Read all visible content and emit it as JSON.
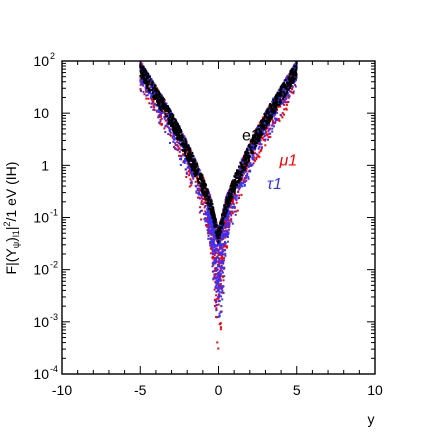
{
  "chart_data": {
    "type": "scatter",
    "xlabel": "y",
    "ylabel": "F|(Y_ψ)_l1|²/1 eV (IH)",
    "ylabel_parts": {
      "a": "F|(Y",
      "b": "ψ",
      "c": ")",
      "d": "l1",
      "e": "|",
      "f": "2",
      "g": "/1 eV (IH)"
    },
    "xlim": [
      -10,
      10
    ],
    "ylim": [
      0.0001,
      100
    ],
    "yscale": "log",
    "grid": false,
    "x_ticks": [
      -10,
      -5,
      0,
      5,
      10
    ],
    "x_tick_labels": [
      "-10",
      "-5",
      "0",
      "5",
      "10"
    ],
    "y_ticks": [
      {
        "value": 0.0001,
        "base": "10",
        "exp": "-4"
      },
      {
        "value": 0.001,
        "base": "10",
        "exp": "-3"
      },
      {
        "value": 0.01,
        "base": "10",
        "exp": "-2"
      },
      {
        "value": 0.1,
        "base": "10",
        "exp": "-1"
      },
      {
        "value": 1,
        "base": "1",
        "exp": ""
      },
      {
        "value": 10,
        "base": "10",
        "exp": ""
      },
      {
        "value": 100,
        "base": "10",
        "exp": "2"
      }
    ],
    "series": [
      {
        "name": "e1",
        "color": "#000000",
        "label_pos": {
          "x": 1.5,
          "y": 3
        },
        "x": [
          -5.0,
          -4.5,
          -4.0,
          -3.5,
          -3.0,
          -2.5,
          -2.0,
          -1.5,
          -1.0,
          -0.5,
          0.0,
          0.5,
          1.0,
          1.5,
          2.0,
          2.5,
          3.0,
          3.5,
          4.0,
          4.5,
          5.0
        ],
        "y_low": [
          50,
          28,
          16,
          9,
          5.0,
          2.6,
          1.3,
          0.62,
          0.28,
          0.12,
          0.032,
          0.12,
          0.28,
          0.62,
          1.3,
          2.6,
          5.0,
          9,
          16,
          28,
          50
        ],
        "y_high": [
          100,
          58,
          33,
          19,
          10.5,
          5.6,
          2.8,
          1.35,
          0.62,
          0.25,
          0.06,
          0.25,
          0.62,
          1.35,
          2.8,
          5.6,
          10.5,
          19,
          33,
          58,
          100
        ]
      },
      {
        "name": "μ1",
        "color": "#ff0000",
        "label_pos": {
          "x": 3.9,
          "y": 1.0
        },
        "x": [
          -5.0,
          -4.5,
          -4.0,
          -3.5,
          -3.0,
          -2.5,
          -2.0,
          -1.5,
          -1.0,
          -0.5,
          0.0,
          0.5,
          1.0,
          1.5,
          2.0,
          2.5,
          3.0,
          3.5,
          4.0,
          4.5,
          5.0
        ],
        "y_low": [
          22,
          12,
          6.5,
          3.6,
          1.9,
          1.0,
          0.45,
          0.19,
          0.07,
          0.018,
          0.00012,
          0.018,
          0.07,
          0.19,
          0.45,
          1.0,
          1.9,
          3.6,
          6.5,
          12,
          22
        ],
        "y_high": [
          100,
          58,
          33,
          19,
          10.5,
          5.6,
          2.8,
          1.35,
          0.62,
          0.25,
          0.06,
          0.25,
          0.62,
          1.35,
          2.8,
          5.6,
          10.5,
          19,
          33,
          58,
          100
        ]
      },
      {
        "name": "τ1",
        "color": "#3333ff",
        "label_pos": {
          "x": 3.1,
          "y": 0.35
        },
        "x": [
          -5.0,
          -4.5,
          -4.0,
          -3.5,
          -3.0,
          -2.5,
          -2.0,
          -1.5,
          -1.0,
          -0.5,
          0.0,
          0.5,
          1.0,
          1.5,
          2.0,
          2.5,
          3.0,
          3.5,
          4.0,
          4.5,
          5.0
        ],
        "y_low": [
          25,
          14,
          7.5,
          4.2,
          2.2,
          1.15,
          0.52,
          0.22,
          0.08,
          0.022,
          0.00015,
          0.022,
          0.08,
          0.22,
          0.52,
          1.15,
          2.2,
          4.2,
          7.5,
          14,
          25
        ],
        "y_high": [
          100,
          58,
          33,
          19,
          10.5,
          5.6,
          2.8,
          1.35,
          0.62,
          0.25,
          0.06,
          0.25,
          0.62,
          1.35,
          2.8,
          5.6,
          10.5,
          19,
          33,
          58,
          100
        ]
      }
    ]
  }
}
